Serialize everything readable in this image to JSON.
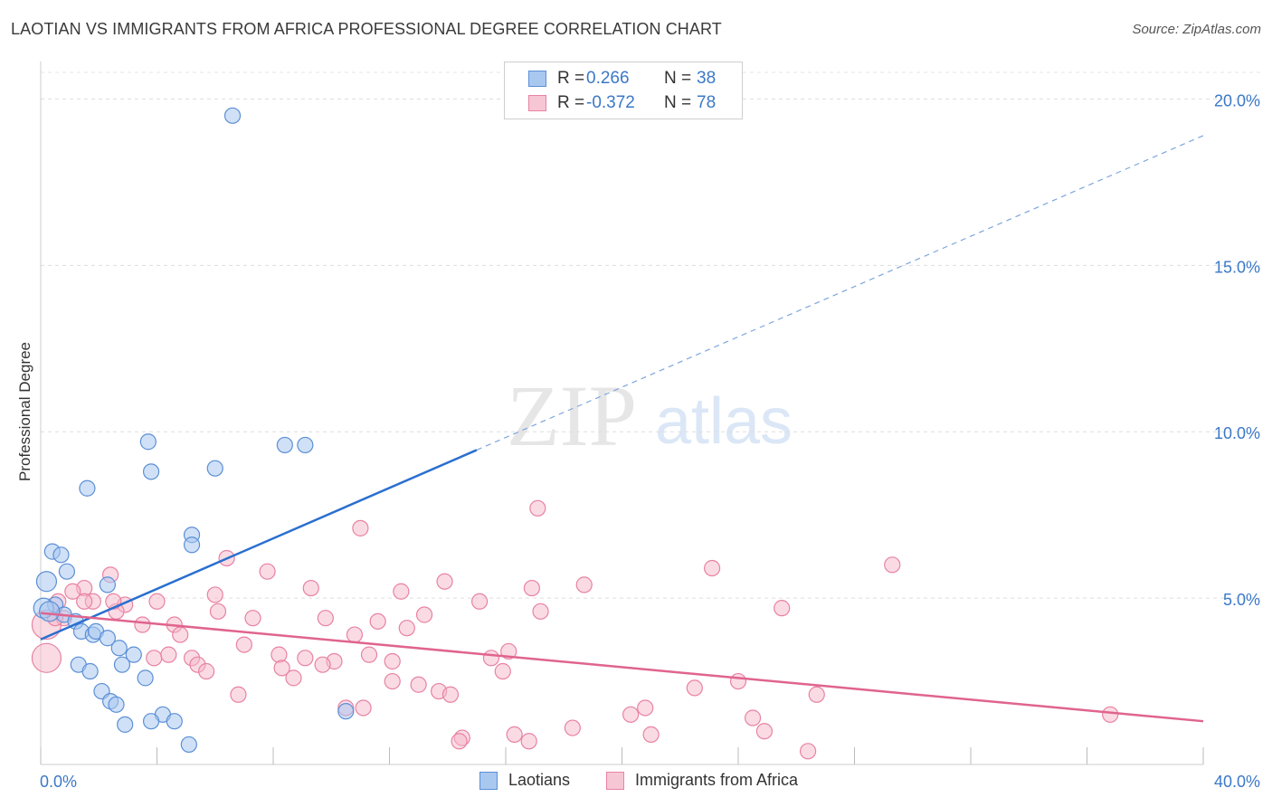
{
  "title": "LAOTIAN VS IMMIGRANTS FROM AFRICA PROFESSIONAL DEGREE CORRELATION CHART",
  "source": "Source: ZipAtlas.com",
  "watermark": {
    "zip": "ZIP",
    "atlas": "atlas"
  },
  "stats": {
    "laotian": {
      "r_label": "R =",
      "r_value": "0.266",
      "n_label": "N =",
      "n_value": "38"
    },
    "africa": {
      "r_label": "R =",
      "r_value": "-0.372",
      "n_label": "N =",
      "n_value": "78"
    }
  },
  "legend": {
    "laotian": "Laotians",
    "africa": "Immigrants from Africa"
  },
  "colors": {
    "blue_fill": "#a9c8f0",
    "blue_stroke": "#5b8fd6",
    "blue_line": "#2a6fd0",
    "pink_fill": "#f6b7c9",
    "pink_stroke": "#e882a3",
    "pink_line": "#e0648e",
    "axis_text": "#3b78c8"
  },
  "chart_data": {
    "type": "scatter",
    "ylabel": "Professional Degree",
    "x_tick_labels": [
      "0.0%",
      "40.0%"
    ],
    "y_tick_labels": [
      "5.0%",
      "10.0%",
      "15.0%",
      "20.0%"
    ],
    "y_ticks": [
      5,
      10,
      15,
      20
    ],
    "xlim": [
      0,
      40
    ],
    "ylim": [
      0,
      20.8
    ],
    "series": [
      {
        "name": "Laotians",
        "points": [
          [
            6.6,
            19.5
          ],
          [
            3.7,
            9.7
          ],
          [
            3.8,
            8.8
          ],
          [
            6.0,
            8.9
          ],
          [
            1.6,
            8.3
          ],
          [
            8.4,
            9.6
          ],
          [
            9.1,
            9.6
          ],
          [
            5.2,
            6.9
          ],
          [
            5.2,
            6.6
          ],
          [
            0.4,
            6.4
          ],
          [
            0.7,
            6.3
          ],
          [
            0.9,
            5.8
          ],
          [
            0.2,
            5.5
          ],
          [
            2.3,
            5.4
          ],
          [
            0.5,
            4.8
          ],
          [
            0.8,
            4.5
          ],
          [
            1.2,
            4.3
          ],
          [
            0.1,
            4.7
          ],
          [
            1.4,
            4.0
          ],
          [
            1.8,
            3.9
          ],
          [
            1.9,
            4.0
          ],
          [
            2.3,
            3.8
          ],
          [
            2.7,
            3.5
          ],
          [
            3.2,
            3.3
          ],
          [
            2.8,
            3.0
          ],
          [
            1.3,
            3.0
          ],
          [
            1.7,
            2.8
          ],
          [
            3.6,
            2.6
          ],
          [
            2.1,
            2.2
          ],
          [
            2.4,
            1.9
          ],
          [
            2.6,
            1.8
          ],
          [
            4.2,
            1.5
          ],
          [
            3.8,
            1.3
          ],
          [
            4.6,
            1.3
          ],
          [
            2.9,
            1.2
          ],
          [
            10.5,
            1.6
          ],
          [
            5.1,
            0.6
          ],
          [
            0.3,
            4.6
          ]
        ],
        "trend": {
          "x0": 0,
          "y0": 3.76,
          "x1": 15,
          "y1": 9.45,
          "dash_to_x": 40,
          "dash_to_y": 18.9
        }
      },
      {
        "name": "Immigrants from Africa",
        "points": [
          [
            17.1,
            7.7
          ],
          [
            11.0,
            7.1
          ],
          [
            6.4,
            6.2
          ],
          [
            23.1,
            5.9
          ],
          [
            29.3,
            6.0
          ],
          [
            7.8,
            5.8
          ],
          [
            2.4,
            5.7
          ],
          [
            9.3,
            5.3
          ],
          [
            12.4,
            5.2
          ],
          [
            13.9,
            5.5
          ],
          [
            16.9,
            5.3
          ],
          [
            18.7,
            5.4
          ],
          [
            1.5,
            5.3
          ],
          [
            1.1,
            5.2
          ],
          [
            6.0,
            5.1
          ],
          [
            0.6,
            4.9
          ],
          [
            1.8,
            4.9
          ],
          [
            2.9,
            4.8
          ],
          [
            4.0,
            4.9
          ],
          [
            15.1,
            4.9
          ],
          [
            25.5,
            4.7
          ],
          [
            17.2,
            4.6
          ],
          [
            13.2,
            4.5
          ],
          [
            6.1,
            4.6
          ],
          [
            9.8,
            4.4
          ],
          [
            7.3,
            4.4
          ],
          [
            11.6,
            4.3
          ],
          [
            3.5,
            4.2
          ],
          [
            4.6,
            4.2
          ],
          [
            12.6,
            4.1
          ],
          [
            10.8,
            3.9
          ],
          [
            4.8,
            3.9
          ],
          [
            0.2,
            4.2
          ],
          [
            0.8,
            4.4
          ],
          [
            2.6,
            4.6
          ],
          [
            7.0,
            3.6
          ],
          [
            5.2,
            3.2
          ],
          [
            8.2,
            3.3
          ],
          [
            3.9,
            3.2
          ],
          [
            11.3,
            3.3
          ],
          [
            9.1,
            3.2
          ],
          [
            10.1,
            3.1
          ],
          [
            12.1,
            3.1
          ],
          [
            15.5,
            3.2
          ],
          [
            16.1,
            3.4
          ],
          [
            9.7,
            3.0
          ],
          [
            5.4,
            3.0
          ],
          [
            5.7,
            2.8
          ],
          [
            8.3,
            2.9
          ],
          [
            15.9,
            2.8
          ],
          [
            8.7,
            2.6
          ],
          [
            12.1,
            2.5
          ],
          [
            13.0,
            2.4
          ],
          [
            22.5,
            2.3
          ],
          [
            24.0,
            2.5
          ],
          [
            6.8,
            2.1
          ],
          [
            13.7,
            2.2
          ],
          [
            14.1,
            2.1
          ],
          [
            26.7,
            2.1
          ],
          [
            10.5,
            1.7
          ],
          [
            11.1,
            1.7
          ],
          [
            20.8,
            1.7
          ],
          [
            20.3,
            1.5
          ],
          [
            24.5,
            1.4
          ],
          [
            36.8,
            1.5
          ],
          [
            18.3,
            1.1
          ],
          [
            16.3,
            0.9
          ],
          [
            21.0,
            0.9
          ],
          [
            24.9,
            1.0
          ],
          [
            14.5,
            0.8
          ],
          [
            14.4,
            0.7
          ],
          [
            16.8,
            0.7
          ],
          [
            26.4,
            0.4
          ],
          [
            4.4,
            3.3
          ],
          [
            1.5,
            4.9
          ],
          [
            2.5,
            4.9
          ],
          [
            0.2,
            3.2
          ],
          [
            0.5,
            4.4
          ]
        ],
        "trend": {
          "x0": 0,
          "y0": 4.55,
          "x1": 40,
          "y1": 1.3
        }
      }
    ]
  }
}
